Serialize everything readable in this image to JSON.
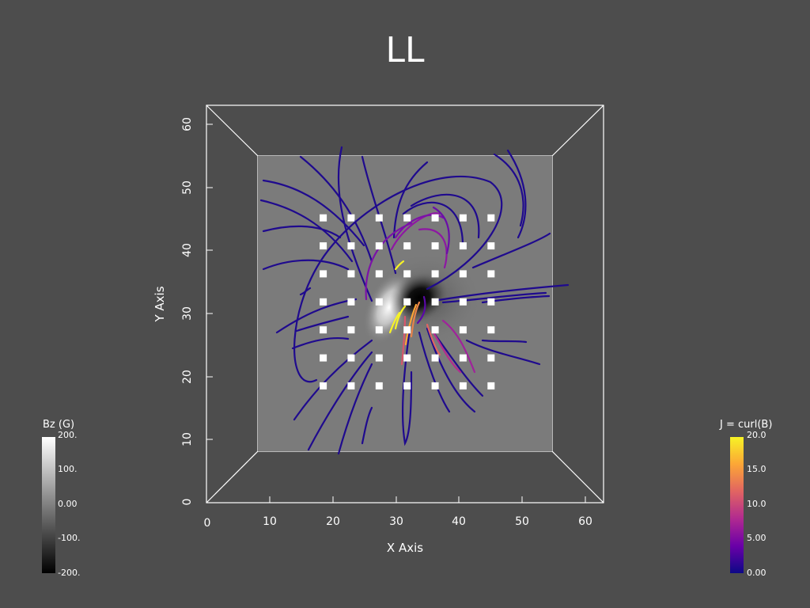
{
  "title": "LL",
  "axes": {
    "x_title": "X Axis",
    "y_title": "Y Axis",
    "x_ticks": [
      "0",
      "10",
      "20",
      "30",
      "40",
      "50",
      "60"
    ],
    "y_ticks": [
      "0",
      "10",
      "20",
      "30",
      "40",
      "50",
      "60"
    ],
    "range": [
      0,
      62
    ]
  },
  "colorbars": {
    "bz": {
      "label": "Bz (G)",
      "ticks": [
        "200.",
        "100.",
        "0.00",
        "-100.",
        "-200."
      ],
      "colors": [
        "#ffffff",
        "#000000"
      ]
    },
    "j": {
      "label": "J = curl(B)",
      "ticks": [
        "20.0",
        "15.0",
        "10.0",
        "5.00",
        "0.00"
      ],
      "colors": [
        "#f7f325",
        "#fca636",
        "#e16462",
        "#b12a90",
        "#6a00a8",
        "#0d0887"
      ]
    }
  },
  "seed_grid": {
    "x": [
      14,
      20,
      26,
      32,
      38,
      44,
      50
    ],
    "y": [
      14,
      20,
      26,
      32,
      38,
      44,
      50
    ]
  },
  "slice_colors": {
    "background": "#7b7b7b",
    "positive": "#ffffff",
    "negative": "#000000"
  }
}
